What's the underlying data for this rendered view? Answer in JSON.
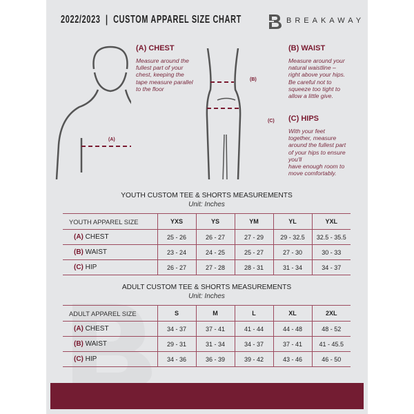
{
  "header": {
    "title": "2022/2023  |  CUSTOM APPAREL SIZE CHART",
    "brand": "BREAKAWAY",
    "logo_letter": "B"
  },
  "measure": {
    "chest": {
      "title": "(A) CHEST",
      "text": [
        "Measure around the",
        "fullest part of your",
        "chest, keeping the",
        "tape measure parallel",
        "to the floor"
      ],
      "tag": "(A)"
    },
    "waist": {
      "title": "(B) WAIST",
      "text": [
        "Measure around your",
        "natural waistline –",
        "right above your hips.",
        "Be careful not to",
        "squeeze too tight to",
        "allow a little give."
      ],
      "tag": "(B)"
    },
    "hips": {
      "title": "(C) HIPS",
      "text": [
        "With your feet",
        "together, measure",
        "around the fullest part",
        "of your hips to ensure",
        "you'll",
        "have enough room to",
        "move comfortably."
      ],
      "tag": "(C)"
    }
  },
  "youth": {
    "title": "YOUTH CUSTOM TEE & SHORTS MEASUREMENTS",
    "unit": "Unit: Inches",
    "header": [
      "YOUTH APPAREL SIZE",
      "YXS",
      "YS",
      "YM",
      "YL",
      "YXL"
    ],
    "rows": [
      {
        "letter": "(A)",
        "label": "CHEST",
        "values": [
          "25 - 26",
          "26 - 27",
          "27 - 29",
          "29 - 32.5",
          "32.5 - 35.5"
        ]
      },
      {
        "letter": "(B)",
        "label": "WAIST",
        "values": [
          "23 - 24",
          "24 - 25",
          "25 - 27",
          "27 - 30",
          "30 - 33"
        ]
      },
      {
        "letter": "(C)",
        "label": "HIP",
        "values": [
          "26 - 27",
          "27 - 28",
          "28 - 31",
          "31 - 34",
          "34 - 37"
        ]
      }
    ]
  },
  "adult": {
    "title": "ADULT CUSTOM TEE & SHORTS MEASUREMENTS",
    "unit": "Unit: Inches",
    "header": [
      "ADULT APPAREL SIZE",
      "S",
      "M",
      "L",
      "XL",
      "2XL"
    ],
    "rows": [
      {
        "letter": "(A)",
        "label": "CHEST",
        "values": [
          "34 - 37",
          "37 - 41",
          "41 - 44",
          "44 - 48",
          "48 - 52"
        ]
      },
      {
        "letter": "(B)",
        "label": "WAIST",
        "values": [
          "29 - 31",
          "31 - 34",
          "34 - 37",
          "37 - 41",
          "41 - 45.5"
        ]
      },
      {
        "letter": "(C)",
        "label": "HIP",
        "values": [
          "34 - 36",
          "36 - 39",
          "39 - 42",
          "43 - 46",
          "46 - 50"
        ]
      }
    ]
  },
  "colors": {
    "accent": "#731c32",
    "panel": "#e5e6e8"
  }
}
